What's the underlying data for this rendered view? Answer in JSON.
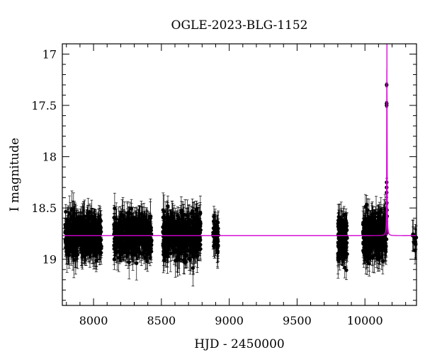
{
  "chart_data": {
    "type": "scatter",
    "title": "OGLE-2023-BLG-1152",
    "xlabel": "HJD - 2450000",
    "ylabel": "I magnitude",
    "xlim": [
      7770,
      10380
    ],
    "ylim": [
      19.45,
      16.9
    ],
    "y_inverted": true,
    "x_ticks": [
      8000,
      8500,
      9000,
      9500,
      10000
    ],
    "y_ticks": [
      17,
      17.5,
      18,
      18.5,
      19
    ],
    "x_minor_step": 100,
    "y_minor_step": 0.1,
    "colors": {
      "data": "#000000",
      "model": "#d000d0"
    },
    "seasons": [
      {
        "x_range": [
          7790,
          8060
        ],
        "y_center": 18.77,
        "y_spread": 0.34,
        "n": 520
      },
      {
        "x_range": [
          8150,
          8430
        ],
        "y_center": 18.77,
        "y_spread": 0.34,
        "n": 480
      },
      {
        "x_range": [
          8510,
          8790
        ],
        "y_center": 18.77,
        "y_spread": 0.38,
        "n": 500
      },
      {
        "x_range": [
          8880,
          8920
        ],
        "y_center": 18.77,
        "y_spread": 0.28,
        "n": 45
      },
      {
        "x_range": [
          9800,
          9870
        ],
        "y_center": 18.8,
        "y_spread": 0.42,
        "n": 140
      },
      {
        "x_range": [
          9985,
          10160
        ],
        "y_center": 18.77,
        "y_spread": 0.38,
        "n": 320
      },
      {
        "x_range": [
          10350,
          10380
        ],
        "y_center": 18.8,
        "y_spread": 0.2,
        "n": 10
      }
    ],
    "event_points": [
      {
        "x": 10160,
        "y": 17.3,
        "err": 0.02
      },
      {
        "x": 10160,
        "y": 17.48,
        "err": 0.02
      },
      {
        "x": 10160,
        "y": 17.5,
        "err": 0.02
      },
      {
        "x": 10160,
        "y": 18.25,
        "err": 0.04
      },
      {
        "x": 10160,
        "y": 18.3,
        "err": 0.04
      },
      {
        "x": 10160,
        "y": 18.35,
        "err": 0.04
      },
      {
        "x": 10161,
        "y": 18.45,
        "err": 0.05
      },
      {
        "x": 10162,
        "y": 18.52,
        "err": 0.05
      },
      {
        "x": 10163,
        "y": 18.58,
        "err": 0.05
      },
      {
        "x": 10158,
        "y": 18.6,
        "err": 0.05
      }
    ],
    "model": {
      "baseline": 18.77,
      "t0": 10162,
      "peak": 16.9,
      "width_days": 1.5
    }
  }
}
